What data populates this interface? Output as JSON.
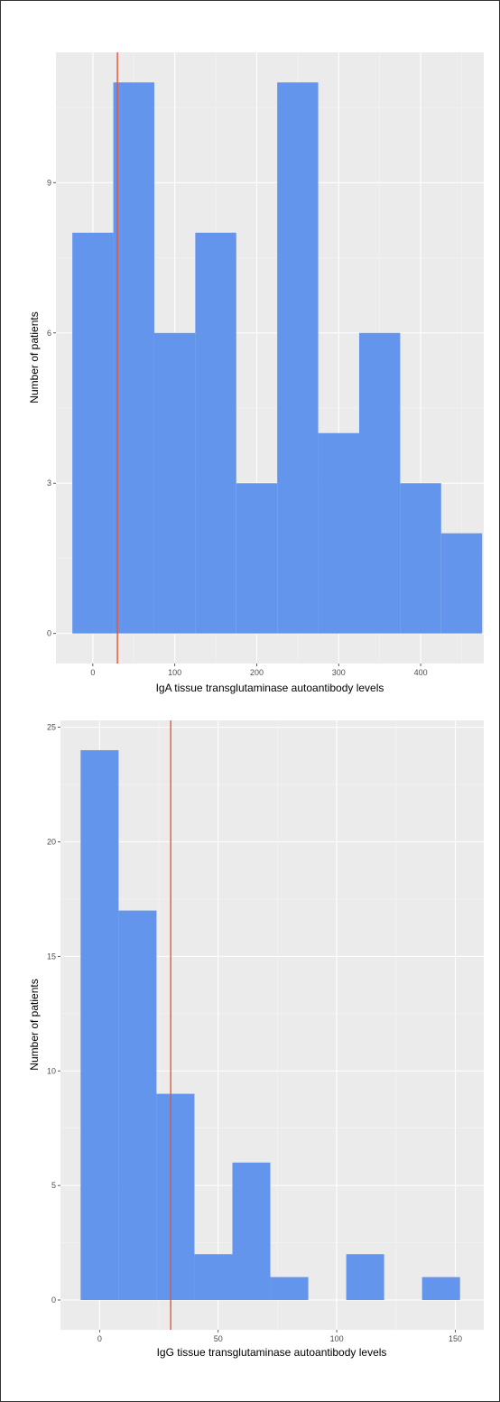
{
  "colors": {
    "panel": "#ebebeb",
    "grid_major": "#ffffff",
    "grid_minor": "#f5f5f5",
    "bar": "#6495ed",
    "vline": "#e8542f"
  },
  "chart_data": [
    {
      "type": "histogram",
      "title": "",
      "xlabel": "IgA tissue transglutaminase autoantibody levels",
      "ylabel": "Number of patients",
      "xlim": [
        -45,
        477
      ],
      "ylim": [
        -0.6,
        11.6
      ],
      "x_ticks": [
        0,
        100,
        200,
        300,
        400
      ],
      "y_ticks": [
        0,
        3,
        6,
        9
      ],
      "grid": true,
      "bins": [
        {
          "x0": -25,
          "x1": 25,
          "count": 8
        },
        {
          "x0": 25,
          "x1": 75,
          "count": 11
        },
        {
          "x0": 75,
          "x1": 125,
          "count": 6
        },
        {
          "x0": 125,
          "x1": 175,
          "count": 8
        },
        {
          "x0": 175,
          "x1": 225,
          "count": 3
        },
        {
          "x0": 225,
          "x1": 275,
          "count": 11
        },
        {
          "x0": 275,
          "x1": 325,
          "count": 4
        },
        {
          "x0": 325,
          "x1": 375,
          "count": 6
        },
        {
          "x0": 375,
          "x1": 425,
          "count": 3
        },
        {
          "x0": 425,
          "x1": 475,
          "count": 2
        }
      ],
      "vline": 30
    },
    {
      "type": "histogram",
      "title": "",
      "xlabel": "IgG tissue transglutaminase autoantibody levels",
      "ylabel": "Number of patients",
      "xlim": [
        -16.5,
        162
      ],
      "ylim": [
        -1.3,
        25.3
      ],
      "x_ticks": [
        0,
        50,
        100,
        150
      ],
      "y_ticks": [
        0,
        5,
        10,
        15,
        20,
        25
      ],
      "grid": true,
      "bins": [
        {
          "x0": -8,
          "x1": 8,
          "count": 24
        },
        {
          "x0": 8,
          "x1": 24,
          "count": 17
        },
        {
          "x0": 24,
          "x1": 40,
          "count": 9
        },
        {
          "x0": 40,
          "x1": 56,
          "count": 2
        },
        {
          "x0": 56,
          "x1": 72,
          "count": 6
        },
        {
          "x0": 72,
          "x1": 88,
          "count": 1
        },
        {
          "x0": 88,
          "x1": 104,
          "count": 0
        },
        {
          "x0": 104,
          "x1": 120,
          "count": 2
        },
        {
          "x0": 120,
          "x1": 136,
          "count": 0
        },
        {
          "x0": 136,
          "x1": 152,
          "count": 1
        }
      ],
      "vline": 30
    }
  ]
}
